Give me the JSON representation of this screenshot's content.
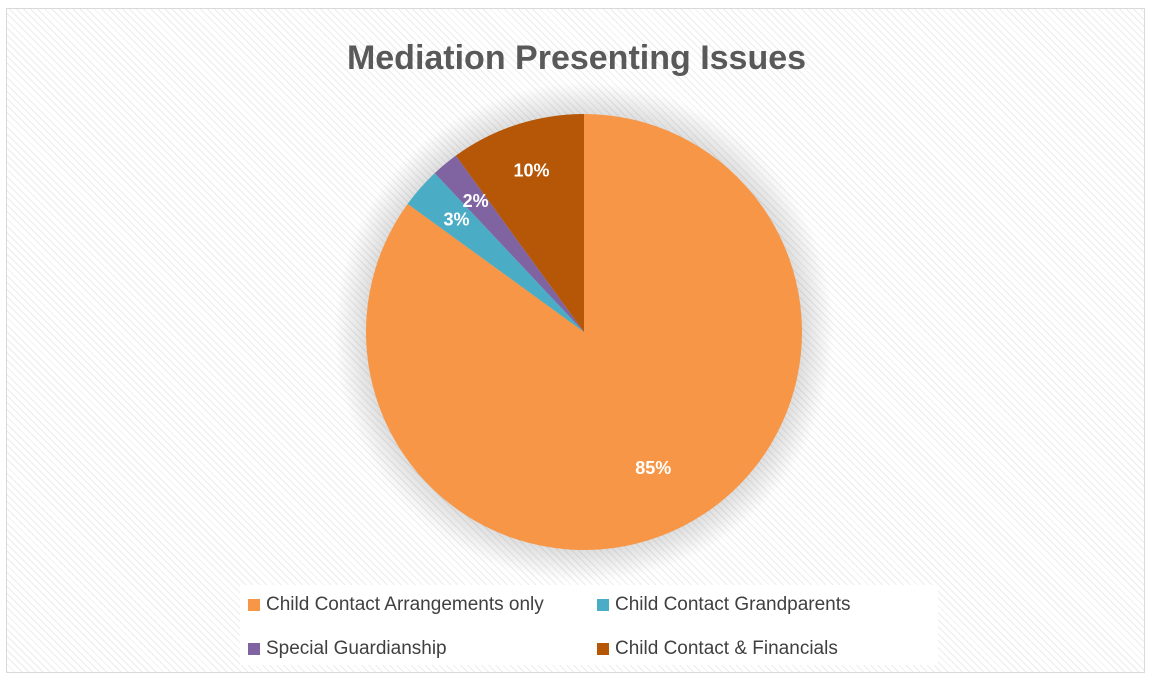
{
  "chart_data": {
    "type": "pie",
    "title": "Mediation Presenting Issues",
    "slices": [
      {
        "label": "Child Contact Arrangements only",
        "value": 85,
        "value_label": "85%",
        "color": "#f79646"
      },
      {
        "label": "Child Contact Grandparents",
        "value": 3,
        "value_label": "3%",
        "color": "#4bacc6"
      },
      {
        "label": "Special Guardianship",
        "value": 2,
        "value_label": "2%",
        "color": "#8064a2"
      },
      {
        "label": "Child Contact & Financials",
        "value": 10,
        "value_label": "10%",
        "color": "#b65708"
      }
    ],
    "legend_position": "bottom"
  }
}
